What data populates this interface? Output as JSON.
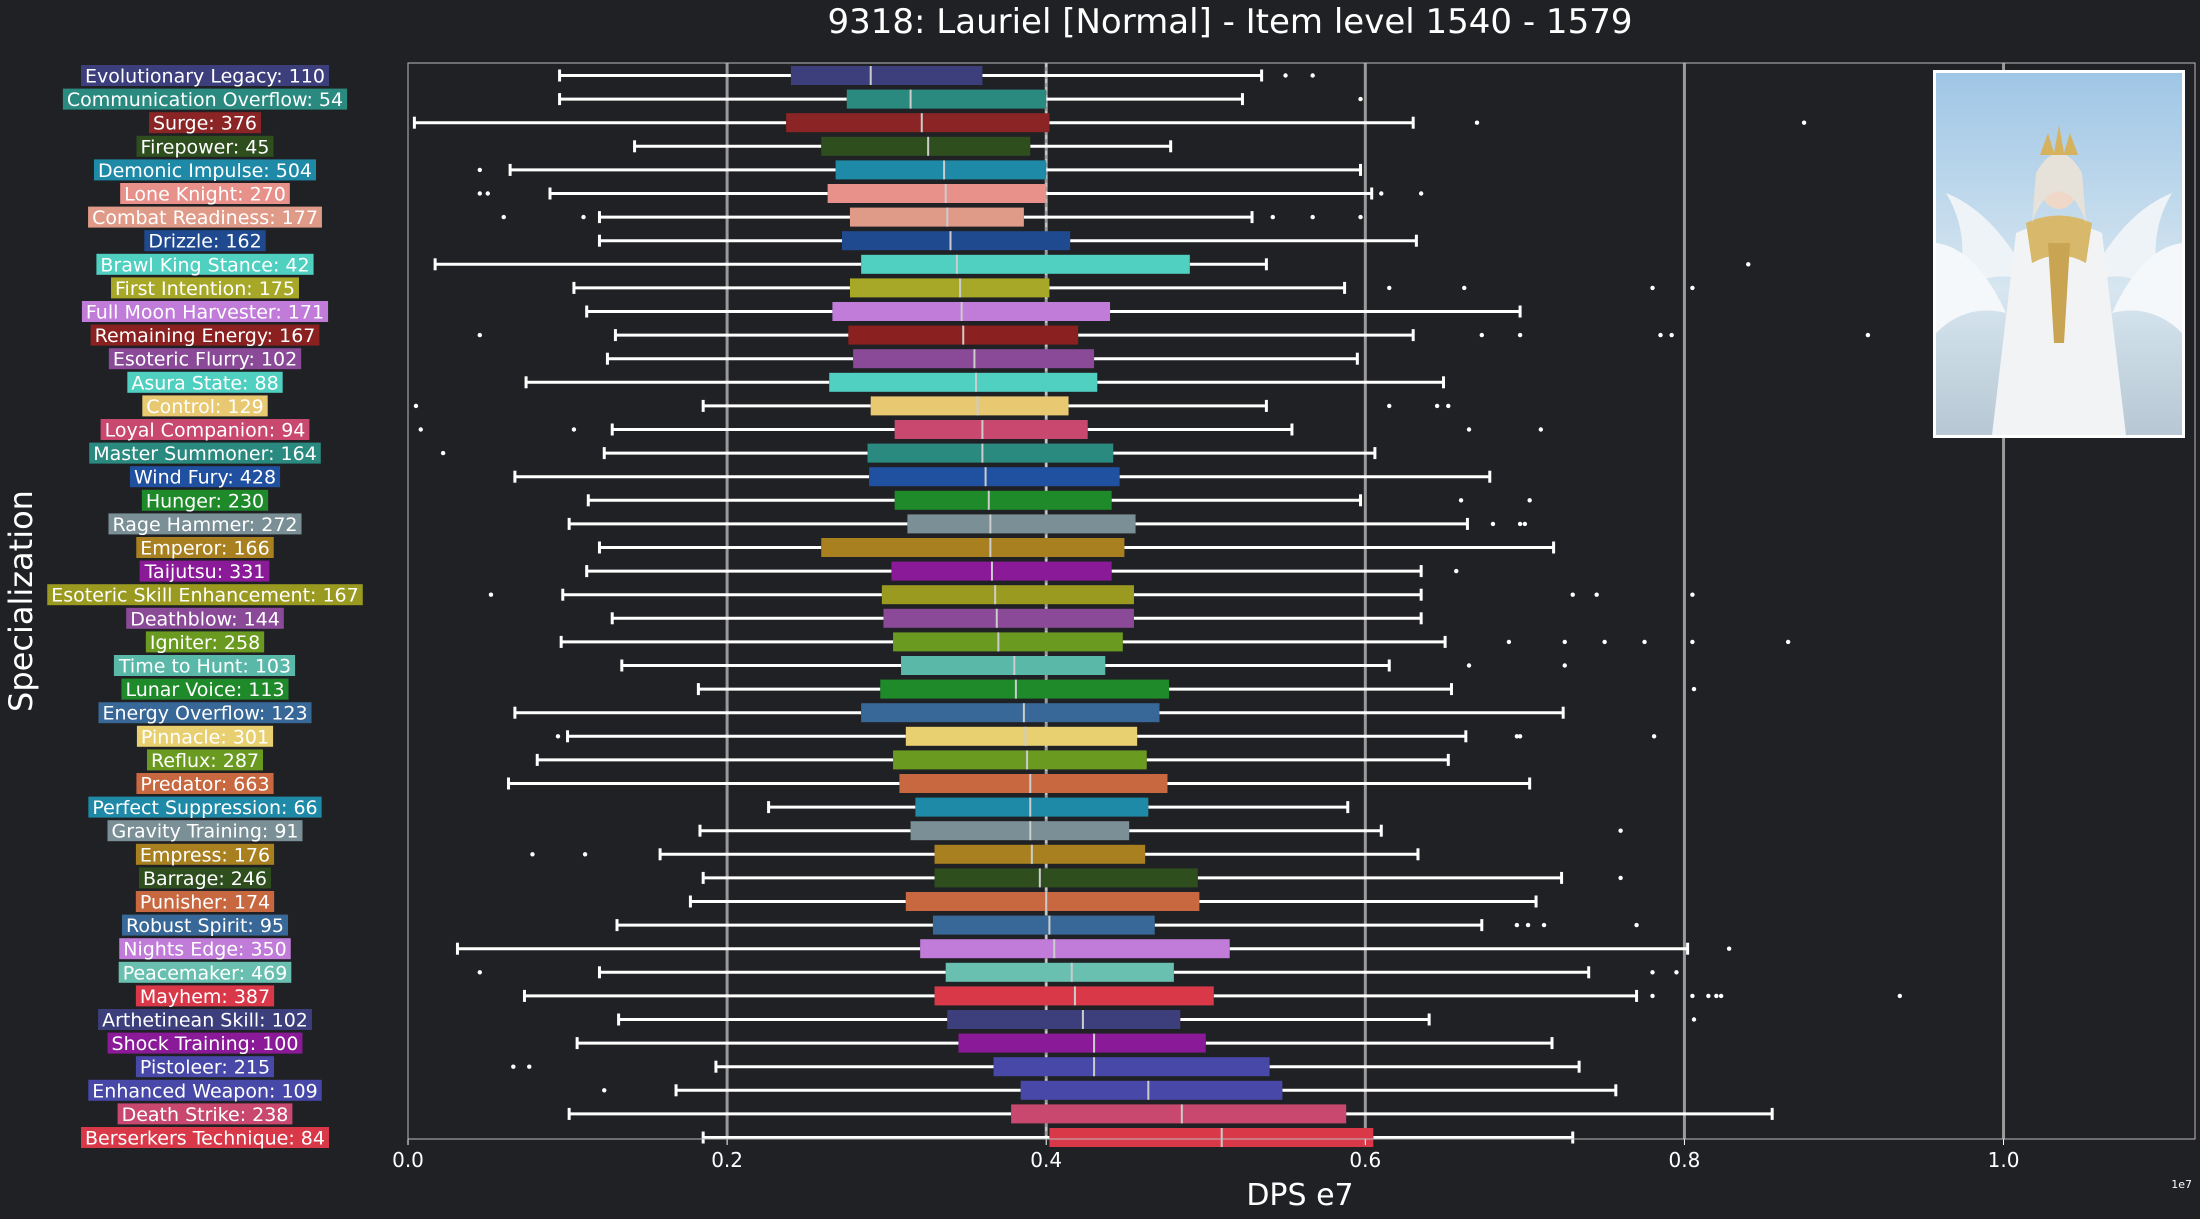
{
  "chart_data": {
    "type": "box",
    "title": "9318: Lauriel [Normal] - Item level 1540 - 1579",
    "xlabel": "DPS e7",
    "ylabel": "Specialization",
    "x_offset_label": "1e7",
    "xlim": [
      0,
      1.12
    ],
    "xticks": [
      0.0,
      0.2,
      0.4,
      0.6,
      0.8,
      1.0
    ],
    "grid": "vertical",
    "median_marker": 0.4,
    "portrait": "character-portrait",
    "series": [
      {
        "name": "Evolutionary Legacy: 110",
        "color": "#3d3f7d",
        "whislo": 0.095,
        "q1": 0.24,
        "med": 0.29,
        "q3": 0.36,
        "whishi": 0.535,
        "fliers": [
          0.55,
          0.567
        ]
      },
      {
        "name": "Communication Overflow: 54",
        "color": "#2a8a80",
        "whislo": 0.095,
        "q1": 0.275,
        "med": 0.315,
        "q3": 0.4,
        "whishi": 0.523,
        "fliers": [
          0.597
        ]
      },
      {
        "name": "Surge: 376",
        "color": "#8b2525",
        "whislo": 0.004,
        "q1": 0.237,
        "med": 0.322,
        "q3": 0.402,
        "whishi": 0.63,
        "fliers": [
          0.67,
          0.875
        ]
      },
      {
        "name": "Firepower: 45",
        "color": "#2e4e1e",
        "whislo": 0.142,
        "q1": 0.259,
        "med": 0.326,
        "q3": 0.39,
        "whishi": 0.478,
        "fliers": []
      },
      {
        "name": "Demonic Impulse: 504",
        "color": "#1f8aa8",
        "whislo": 0.064,
        "q1": 0.268,
        "med": 0.336,
        "q3": 0.4,
        "whishi": 0.597,
        "fliers": [
          0.045
        ]
      },
      {
        "name": "Lone Knight: 270",
        "color": "#e8908a",
        "whislo": 0.089,
        "q1": 0.263,
        "med": 0.337,
        "q3": 0.4,
        "whishi": 0.604,
        "fliers": [
          0.045,
          0.05,
          0.61,
          0.635
        ]
      },
      {
        "name": "Combat Readiness: 177",
        "color": "#e09a88",
        "whislo": 0.12,
        "q1": 0.277,
        "med": 0.338,
        "q3": 0.386,
        "whishi": 0.529,
        "fliers": [
          0.06,
          0.11,
          0.542,
          0.567,
          0.597
        ]
      },
      {
        "name": "Drizzle: 162",
        "color": "#1f4a90",
        "whislo": 0.12,
        "q1": 0.272,
        "med": 0.34,
        "q3": 0.415,
        "whishi": 0.632,
        "fliers": []
      },
      {
        "name": "Brawl King Stance: 42",
        "color": "#4fd0c0",
        "whislo": 0.017,
        "q1": 0.284,
        "med": 0.344,
        "q3": 0.49,
        "whishi": 0.538,
        "fliers": [
          0.84
        ]
      },
      {
        "name": "First Intention: 175",
        "color": "#a8a828",
        "whislo": 0.104,
        "q1": 0.277,
        "med": 0.346,
        "q3": 0.402,
        "whishi": 0.587,
        "fliers": [
          0.615,
          0.662,
          0.78,
          0.805
        ]
      },
      {
        "name": "Full Moon Harvester: 171",
        "color": "#c07cd8",
        "whislo": 0.112,
        "q1": 0.266,
        "med": 0.347,
        "q3": 0.44,
        "whishi": 0.697,
        "fliers": []
      },
      {
        "name": "Remaining Energy: 167",
        "color": "#8b2020",
        "whislo": 0.13,
        "q1": 0.276,
        "med": 0.348,
        "q3": 0.42,
        "whishi": 0.63,
        "fliers": [
          0.045,
          0.673,
          0.697,
          0.785,
          0.792,
          0.915
        ]
      },
      {
        "name": "Esoteric Flurry: 102",
        "color": "#8a4a98",
        "whislo": 0.125,
        "q1": 0.279,
        "med": 0.355,
        "q3": 0.43,
        "whishi": 0.595,
        "fliers": []
      },
      {
        "name": "Asura State: 88",
        "color": "#4fd0c0",
        "whislo": 0.074,
        "q1": 0.264,
        "med": 0.356,
        "q3": 0.432,
        "whishi": 0.649,
        "fliers": []
      },
      {
        "name": "Control: 129",
        "color": "#e8c870",
        "whislo": 0.185,
        "q1": 0.29,
        "med": 0.357,
        "q3": 0.414,
        "whishi": 0.538,
        "fliers": [
          0.005,
          0.615,
          0.645,
          0.652
        ]
      },
      {
        "name": "Loyal Companion: 94",
        "color": "#c84870",
        "whislo": 0.128,
        "q1": 0.305,
        "med": 0.36,
        "q3": 0.426,
        "whishi": 0.554,
        "fliers": [
          0.008,
          0.104,
          0.665,
          0.71
        ]
      },
      {
        "name": "Master Summoner: 164",
        "color": "#2a8a80",
        "whislo": 0.123,
        "q1": 0.288,
        "med": 0.36,
        "q3": 0.442,
        "whishi": 0.606,
        "fliers": [
          0.022
        ]
      },
      {
        "name": "Wind Fury: 428",
        "color": "#2050a0",
        "whislo": 0.067,
        "q1": 0.289,
        "med": 0.362,
        "q3": 0.446,
        "whishi": 0.678,
        "fliers": []
      },
      {
        "name": "Hunger: 230",
        "color": "#1e8a2a",
        "whislo": 0.113,
        "q1": 0.305,
        "med": 0.364,
        "q3": 0.441,
        "whishi": 0.597,
        "fliers": [
          0.66,
          0.703
        ]
      },
      {
        "name": "Rage Hammer: 272",
        "color": "#7a9096",
        "whislo": 0.101,
        "q1": 0.313,
        "med": 0.365,
        "q3": 0.456,
        "whishi": 0.664,
        "fliers": [
          0.68,
          0.697,
          0.7
        ]
      },
      {
        "name": "Emperor: 166",
        "color": "#a88020",
        "whislo": 0.12,
        "q1": 0.259,
        "med": 0.365,
        "q3": 0.449,
        "whishi": 0.718,
        "fliers": []
      },
      {
        "name": "Taijutsu: 331",
        "color": "#8a1a98",
        "whislo": 0.112,
        "q1": 0.303,
        "med": 0.366,
        "q3": 0.441,
        "whishi": 0.635,
        "fliers": [
          0.657
        ]
      },
      {
        "name": "Esoteric Skill Enhancement: 167",
        "color": "#9a9a20",
        "whislo": 0.097,
        "q1": 0.297,
        "med": 0.368,
        "q3": 0.455,
        "whishi": 0.635,
        "fliers": [
          0.052,
          0.73,
          0.745,
          0.805
        ]
      },
      {
        "name": "Deathblow: 144",
        "color": "#8a4a98",
        "whislo": 0.128,
        "q1": 0.298,
        "med": 0.369,
        "q3": 0.455,
        "whishi": 0.635,
        "fliers": []
      },
      {
        "name": "Igniter: 258",
        "color": "#6a9a20",
        "whislo": 0.096,
        "q1": 0.304,
        "med": 0.37,
        "q3": 0.448,
        "whishi": 0.65,
        "fliers": [
          0.69,
          0.725,
          0.75,
          0.775,
          0.805,
          0.865
        ]
      },
      {
        "name": "Time to Hunt: 103",
        "color": "#5ab8a8",
        "whislo": 0.134,
        "q1": 0.309,
        "med": 0.38,
        "q3": 0.437,
        "whishi": 0.615,
        "fliers": [
          0.665,
          0.725
        ]
      },
      {
        "name": "Lunar Voice: 113",
        "color": "#1e8a2a",
        "whislo": 0.182,
        "q1": 0.296,
        "med": 0.381,
        "q3": 0.477,
        "whishi": 0.654,
        "fliers": [
          0.806
        ]
      },
      {
        "name": "Energy Overflow: 123",
        "color": "#386898",
        "whislo": 0.067,
        "q1": 0.284,
        "med": 0.386,
        "q3": 0.471,
        "whishi": 0.724,
        "fliers": []
      },
      {
        "name": "Pinnacle: 301",
        "color": "#e8d070",
        "whislo": 0.1,
        "q1": 0.312,
        "med": 0.387,
        "q3": 0.457,
        "whishi": 0.663,
        "fliers": [
          0.094,
          0.695,
          0.697,
          0.781
        ]
      },
      {
        "name": "Reflux: 287",
        "color": "#6a9a20",
        "whislo": 0.081,
        "q1": 0.304,
        "med": 0.388,
        "q3": 0.463,
        "whishi": 0.652,
        "fliers": []
      },
      {
        "name": "Predator: 663",
        "color": "#c86840",
        "whislo": 0.063,
        "q1": 0.308,
        "med": 0.39,
        "q3": 0.476,
        "whishi": 0.703,
        "fliers": []
      },
      {
        "name": "Perfect Suppression: 66",
        "color": "#1f8aa8",
        "whislo": 0.226,
        "q1": 0.318,
        "med": 0.39,
        "q3": 0.464,
        "whishi": 0.589,
        "fliers": []
      },
      {
        "name": "Gravity Training: 91",
        "color": "#7a9096",
        "whislo": 0.183,
        "q1": 0.315,
        "med": 0.39,
        "q3": 0.452,
        "whishi": 0.61,
        "fliers": [
          0.76
        ]
      },
      {
        "name": "Empress: 176",
        "color": "#a88020",
        "whislo": 0.158,
        "q1": 0.33,
        "med": 0.391,
        "q3": 0.462,
        "whishi": 0.633,
        "fliers": [
          0.078,
          0.111
        ]
      },
      {
        "name": "Barrage: 246",
        "color": "#2e4e1e",
        "whislo": 0.185,
        "q1": 0.33,
        "med": 0.396,
        "q3": 0.495,
        "whishi": 0.723,
        "fliers": [
          0.76
        ]
      },
      {
        "name": "Punisher: 174",
        "color": "#c86840",
        "whislo": 0.177,
        "q1": 0.312,
        "med": 0.4,
        "q3": 0.496,
        "whishi": 0.707,
        "fliers": []
      },
      {
        "name": "Robust Spirit: 95",
        "color": "#386898",
        "whislo": 0.131,
        "q1": 0.329,
        "med": 0.402,
        "q3": 0.468,
        "whishi": 0.673,
        "fliers": [
          0.695,
          0.702,
          0.712,
          0.77
        ]
      },
      {
        "name": "Nights Edge: 350",
        "color": "#c07cd8",
        "whislo": 0.031,
        "q1": 0.321,
        "med": 0.405,
        "q3": 0.515,
        "whishi": 0.802,
        "fliers": [
          0.828
        ]
      },
      {
        "name": "Peacemaker: 469",
        "color": "#6ac0b0",
        "whislo": 0.12,
        "q1": 0.337,
        "med": 0.416,
        "q3": 0.48,
        "whishi": 0.74,
        "fliers": [
          0.045,
          0.78,
          0.795
        ]
      },
      {
        "name": "Mayhem: 387",
        "color": "#d83848",
        "whislo": 0.073,
        "q1": 0.33,
        "med": 0.418,
        "q3": 0.505,
        "whishi": 0.77,
        "fliers": [
          0.78,
          0.805,
          0.815,
          0.82,
          0.823,
          0.935
        ]
      },
      {
        "name": "Arthetinean Skill: 102",
        "color": "#3d3f7d",
        "whislo": 0.132,
        "q1": 0.338,
        "med": 0.423,
        "q3": 0.484,
        "whishi": 0.64,
        "fliers": [
          0.806
        ]
      },
      {
        "name": "Shock Training: 100",
        "color": "#8a1a98",
        "whislo": 0.106,
        "q1": 0.345,
        "med": 0.43,
        "q3": 0.5,
        "whishi": 0.717,
        "fliers": []
      },
      {
        "name": "Pistoleer: 215",
        "color": "#4848a8",
        "whislo": 0.193,
        "q1": 0.367,
        "med": 0.43,
        "q3": 0.54,
        "whishi": 0.734,
        "fliers": [
          0.066,
          0.076
        ]
      },
      {
        "name": "Enhanced Weapon: 109",
        "color": "#4848a8",
        "whislo": 0.168,
        "q1": 0.384,
        "med": 0.464,
        "q3": 0.548,
        "whishi": 0.757,
        "fliers": [
          0.123
        ]
      },
      {
        "name": "Death Strike: 238",
        "color": "#c84870",
        "whislo": 0.101,
        "q1": 0.378,
        "med": 0.485,
        "q3": 0.588,
        "whishi": 0.855,
        "fliers": []
      },
      {
        "name": "Berserkers Technique: 84",
        "color": "#d83848",
        "whislo": 0.185,
        "q1": 0.402,
        "med": 0.51,
        "q3": 0.605,
        "whishi": 0.73,
        "fliers": []
      }
    ]
  }
}
